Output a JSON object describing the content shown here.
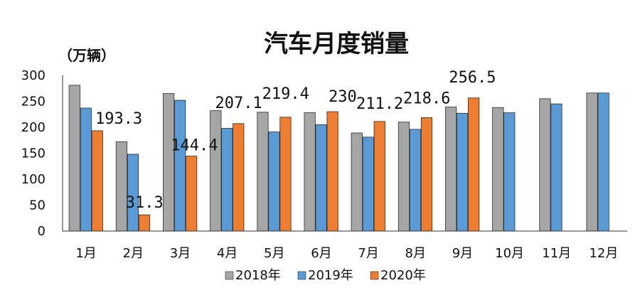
{
  "chart_data": {
    "type": "bar",
    "title": "汽车月度销量",
    "unit_label": "（万辆）",
    "categories": [
      "1月",
      "2月",
      "3月",
      "4月",
      "5月",
      "6月",
      "7月",
      "8月",
      "9月",
      "10月",
      "11月",
      "12月"
    ],
    "ylim": [
      0,
      300
    ],
    "yticks": [
      0,
      50,
      100,
      150,
      200,
      250,
      300
    ],
    "grid": false,
    "legend_position": "bottom",
    "series": [
      {
        "name": "2018年",
        "color": "#a5a5a5",
        "values": [
          281,
          172,
          265,
          232,
          229,
          228,
          189,
          210,
          239,
          238,
          255,
          266
        ]
      },
      {
        "name": "2019年",
        "color": "#5b9bd5",
        "values": [
          237,
          148,
          252,
          198,
          191,
          205,
          181,
          196,
          227,
          228,
          245,
          266
        ]
      },
      {
        "name": "2020年",
        "color": "#ed7d31",
        "values": [
          193.3,
          31.3,
          144.4,
          207.1,
          219.4,
          230,
          211.2,
          218.6,
          256.5,
          null,
          null,
          null
        ]
      }
    ],
    "data_labels": [
      {
        "series": 2,
        "index": 0,
        "text": "193.3"
      },
      {
        "series": 2,
        "index": 1,
        "text": "31.3"
      },
      {
        "series": 2,
        "index": 2,
        "text": "144.4"
      },
      {
        "series": 2,
        "index": 3,
        "text": "207.1"
      },
      {
        "series": 2,
        "index": 4,
        "text": "219.4"
      },
      {
        "series": 2,
        "index": 5,
        "text": "230"
      },
      {
        "series": 2,
        "index": 6,
        "text": "211.2"
      },
      {
        "series": 2,
        "index": 7,
        "text": "218.6"
      },
      {
        "series": 2,
        "index": 8,
        "text": "256.5"
      }
    ]
  }
}
